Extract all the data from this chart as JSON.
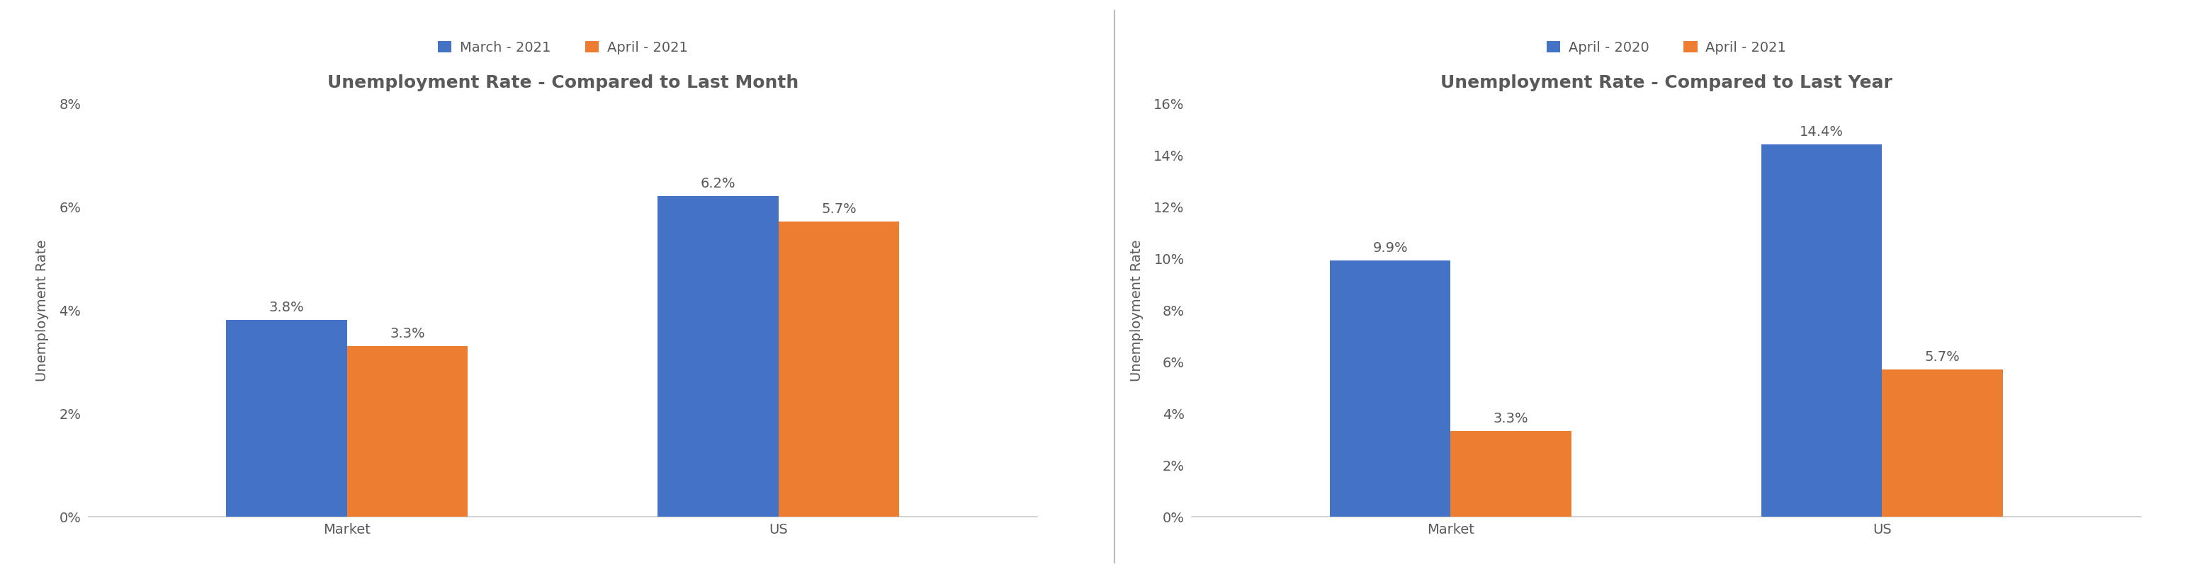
{
  "chart1": {
    "title": "Unemployment Rate - Compared to Last Month",
    "legend": [
      "March - 2021",
      "April - 2021"
    ],
    "categories": [
      "Market",
      "US"
    ],
    "series1": [
      3.8,
      6.2
    ],
    "series2": [
      3.3,
      5.7
    ],
    "color1": "#4472C4",
    "color2": "#ED7D31",
    "ylabel": "Unemployment Rate",
    "ylim": [
      0,
      0.08
    ],
    "yticks": [
      0,
      0.02,
      0.04,
      0.06,
      0.08
    ]
  },
  "chart2": {
    "title": "Unemployment Rate - Compared to Last Year",
    "legend": [
      "April - 2020",
      "April - 2021"
    ],
    "categories": [
      "Market",
      "US"
    ],
    "series1": [
      9.9,
      14.4
    ],
    "series2": [
      3.3,
      5.7
    ],
    "color1": "#4472C4",
    "color2": "#ED7D31",
    "ylabel": "Unemployment Rate",
    "ylim": [
      0,
      0.16
    ],
    "yticks": [
      0,
      0.02,
      0.04,
      0.06,
      0.08,
      0.1,
      0.12,
      0.14,
      0.16
    ]
  },
  "bar_width": 0.28,
  "label_fontsize": 14,
  "title_fontsize": 18,
  "tick_fontsize": 14,
  "legend_fontsize": 14,
  "ylabel_fontsize": 14,
  "background_color": "#FFFFFF",
  "divider_color": "#BBBBBB",
  "text_color": "#595959"
}
